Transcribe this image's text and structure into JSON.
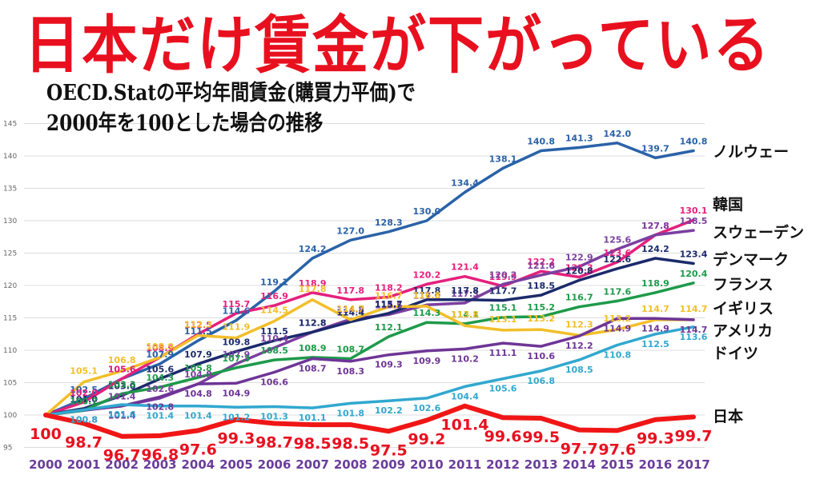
{
  "headline": "日本だけ賃金が下がっている",
  "subtitle": {
    "line1": "OECD.Statの平均年間賃金(購買力平価)で",
    "line2": "2000年を100とした場合の推移"
  },
  "chart_data": {
    "type": "line",
    "title": "日本だけ賃金が下がっている",
    "subtitle": "OECD.Statの平均年間賃金(購買力平価)で2000年を100とした場合の推移",
    "xlabel": "",
    "ylabel": "",
    "ylim": [
      95,
      145
    ],
    "yticks": [
      95,
      100,
      105,
      110,
      115,
      120,
      125,
      130,
      135,
      140,
      145
    ],
    "grid": true,
    "legend_placement": "right (labels at line ends)",
    "x": [
      "2000",
      "2001",
      "2002",
      "2003",
      "2004",
      "2005",
      "2006",
      "2007",
      "2008",
      "2009",
      "2010",
      "2011",
      "2012",
      "2013",
      "2014",
      "2015",
      "2016",
      "2017"
    ],
    "series": [
      {
        "name": "ノルウェー",
        "color": "#2a62a8",
        "values": [
          100,
          102.5,
          105.6,
          107.9,
          111.5,
          114.6,
          119.1,
          124.2,
          127.0,
          128.3,
          130.0,
          134.4,
          138.1,
          140.8,
          141.3,
          142.0,
          139.7,
          140.8
        ]
      },
      {
        "name": "韓国",
        "color": "#e4207c",
        "values": [
          100,
          102.0,
          105.6,
          108.9,
          112.5,
          115.7,
          116.9,
          118.9,
          117.8,
          118.2,
          120.2,
          121.4,
          119.9,
          122.2,
          121.3,
          123.6,
          127.8,
          130.1
        ]
      },
      {
        "name": "スウェーデン",
        "color": "#7b3fa0",
        "values": [
          100,
          100.7,
          101.4,
          102.6,
          104.8,
          107.9,
          110.4,
          112.8,
          114.8,
          115.5,
          117.0,
          117.3,
          120.2,
          121.6,
          122.9,
          125.6,
          127.8,
          128.5
        ]
      },
      {
        "name": "デンマーク",
        "color": "#1b2a6b",
        "values": [
          100,
          101.0,
          103.0,
          105.6,
          107.9,
          109.8,
          111.5,
          112.8,
          114.4,
          115.7,
          117.8,
          117.8,
          117.7,
          118.5,
          120.8,
          122.6,
          124.2,
          123.4
        ]
      },
      {
        "name": "フランス",
        "color": "#1e9a4a",
        "values": [
          100,
          100.7,
          103.3,
          104.3,
          105.8,
          107.3,
          108.5,
          108.9,
          108.7,
          112.1,
          114.3,
          114.1,
          115.1,
          115.2,
          116.7,
          117.6,
          118.9,
          120.4
        ]
      },
      {
        "name": "イギリス",
        "color": "#f2bf2a",
        "values": [
          100,
          105.1,
          106.8,
          108.9,
          112.3,
          111.9,
          114.5,
          117.8,
          114.7,
          116.7,
          116.8,
          113.8,
          113.1,
          113.2,
          112.3,
          113.2,
          114.7,
          114.7
        ]
      },
      {
        "name": "アメリカ",
        "color": "#6e3596",
        "values": [
          100,
          100.8,
          101.4,
          102.8,
          104.8,
          104.9,
          106.6,
          108.7,
          108.3,
          109.3,
          109.9,
          110.2,
          111.1,
          110.6,
          112.2,
          114.9,
          114.9,
          114.7
        ]
      },
      {
        "name": "ドイツ",
        "color": "#31a8cf",
        "values": [
          100,
          100.8,
          101.6,
          101.4,
          101.4,
          101.2,
          101.3,
          101.1,
          101.8,
          102.2,
          102.6,
          104.4,
          105.6,
          106.8,
          108.5,
          110.8,
          112.5,
          113.6
        ]
      },
      {
        "name": "日本",
        "color": "#f01616",
        "values": [
          100,
          98.7,
          96.7,
          96.8,
          97.6,
          99.3,
          98.7,
          98.5,
          98.5,
          97.5,
          99.2,
          101.4,
          99.6,
          99.5,
          97.7,
          97.6,
          99.3,
          99.7
        ]
      }
    ],
    "japan_value_labels": [
      "100",
      "98.7",
      "96.7",
      "96.8",
      "97.6",
      "99.3",
      "98.7",
      "98.5",
      "98.5",
      "97.5",
      "99.2",
      "101.4",
      "99.6",
      "99.5",
      "97.7",
      "97.6",
      "99.3",
      "99.7"
    ]
  }
}
